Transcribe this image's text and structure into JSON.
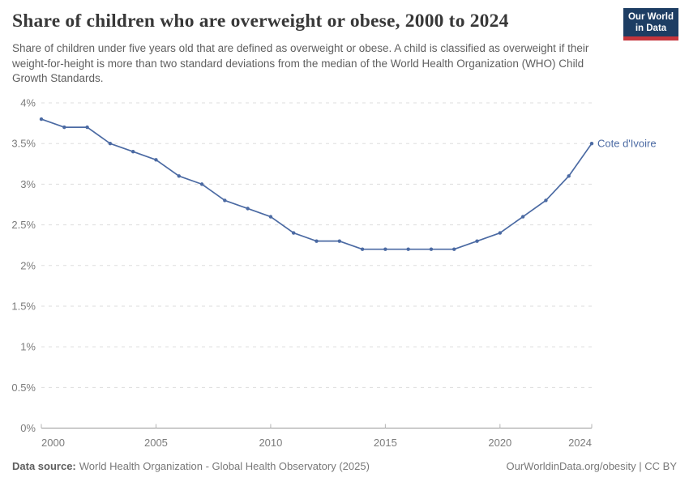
{
  "header": {
    "title": "Share of children who are overweight or obese, 2000 to 2024",
    "subtitle": "Share of children under five years old that are defined as overweight or obese. A child is classified as overweight if their weight-for-height is more than two standard deviations from the median of the World Health Organization (WHO) Child Growth Standards.",
    "logo": {
      "line1": "Our World",
      "line2": "in Data"
    }
  },
  "chart_data": {
    "type": "line",
    "title": "Share of children who are overweight or obese, 2000 to 2024",
    "entity_label": "Cote d'Ivoire",
    "x": [
      2000,
      2001,
      2002,
      2003,
      2004,
      2005,
      2006,
      2007,
      2008,
      2009,
      2010,
      2011,
      2012,
      2013,
      2014,
      2015,
      2016,
      2017,
      2018,
      2019,
      2020,
      2021,
      2022,
      2023,
      2024
    ],
    "series": [
      {
        "name": "Cote d'Ivoire",
        "values": [
          3.8,
          3.7,
          3.7,
          3.5,
          3.4,
          3.3,
          3.1,
          3.0,
          2.8,
          2.7,
          2.6,
          2.4,
          2.3,
          2.3,
          2.2,
          2.2,
          2.2,
          2.2,
          2.2,
          2.3,
          2.4,
          2.6,
          2.8,
          3.1,
          3.5
        ]
      }
    ],
    "xlim": [
      2000,
      2024
    ],
    "ylim": [
      0,
      4
    ],
    "x_tick_values": [
      2000,
      2005,
      2010,
      2015,
      2020,
      2024
    ],
    "x_tick_labels": [
      "2000",
      "2005",
      "2010",
      "2015",
      "2020",
      "2024"
    ],
    "y_tick_values": [
      0,
      0.5,
      1,
      1.5,
      2,
      2.5,
      3,
      3.5,
      4
    ],
    "y_tick_labels": [
      "0%",
      "0.5%",
      "1%",
      "1.5%",
      "2%",
      "2.5%",
      "3%",
      "3.5%",
      "4%"
    ],
    "grid": "horizontal dashed",
    "legend_position": "end-of-line label"
  },
  "footer": {
    "source_label": "Data source:",
    "source_text": "World Health Organization - Global Health Observatory (2025)",
    "license": "OurWorldinData.org/obesity | CC BY"
  },
  "colors": {
    "line": "#4b6aa3",
    "entity_label": "#4b6aa3",
    "grid": "#dddddd",
    "axis": "#999999",
    "tick_mark": "#b5b5b5",
    "tick_text": "#7c7c7c",
    "title_text": "#383838",
    "subtitle_text": "#5f5f5f",
    "footer_text": "#787878",
    "logo_bg": "#1d3d63",
    "logo_accent": "#c5353c"
  }
}
